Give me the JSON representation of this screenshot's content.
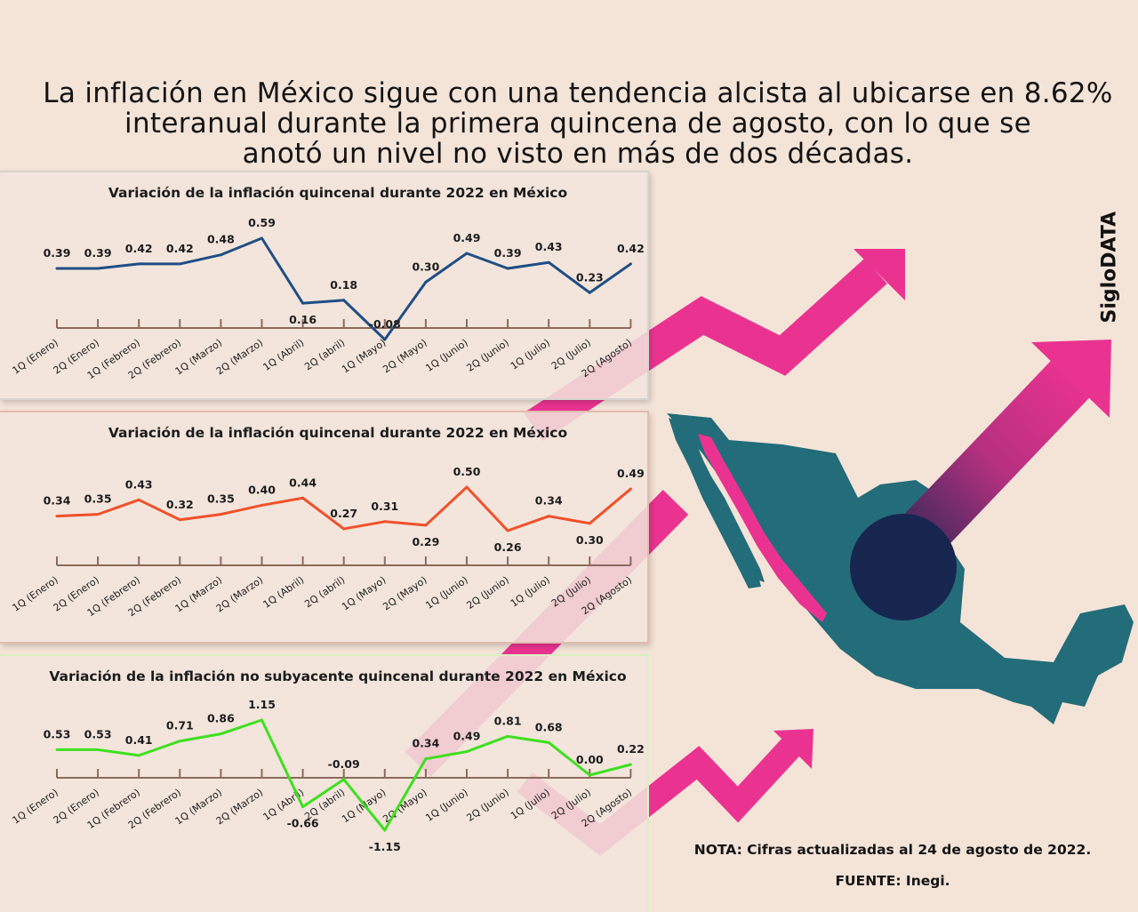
{
  "headline": [
    "La inflación en México sigue con una tendencia alcista al ubicarse en 8.62%",
    "interanual durante la primera quincena de agosto, con lo que se",
    "anotó un nivel no visto en más de dos décadas."
  ],
  "brand": "SigloDATA",
  "note": "NOTA: Cifras actualizadas al 24 de agosto de 2022.",
  "source": "FUENTE: Inegi.",
  "colors": {
    "background": "#f4e4d8",
    "series_1": "#1f4e85",
    "series_2": "#f0512a",
    "series_3": "#3ee01f",
    "axis": "#8b6a5c",
    "arrow": "#ea3390",
    "map": "#236c79",
    "map_highlight": "#ea3390",
    "circle": "#17264f"
  },
  "chart_data": [
    {
      "type": "line",
      "title": "Variación de la inflación quincenal durante 2022 en México",
      "categories": [
        "1Q (Enero)",
        "2Q (Enero)",
        "1Q (Febrero)",
        "2Q (Febrero)",
        "1Q (Marzo)",
        "2Q (Marzo)",
        "1Q (Abril)",
        "2Q (abril)",
        "1Q (Mayo)",
        "2Q (Mayo)",
        "1Q (Junio)",
        "2Q (Junio)",
        "1Q (Julio)",
        "2Q (Julio)",
        "2Q (Agosto)"
      ],
      "series": [
        {
          "values": [
            0.39,
            0.39,
            0.42,
            0.42,
            0.48,
            0.59,
            0.16,
            0.18,
            -0.08,
            0.3,
            0.49,
            0.39,
            0.43,
            0.23,
            0.42
          ]
        }
      ],
      "value_labels": [
        "0.39",
        "0.39",
        "0.42",
        "0.42",
        "0.48",
        "0.59",
        "0.16",
        "0.18",
        "-0.08",
        "0.30",
        "0.49",
        "0.39",
        "0.43",
        "0.23",
        "0.42"
      ],
      "label_position": [
        "above",
        "above",
        "above",
        "above",
        "above",
        "above",
        "below",
        "above",
        "above",
        "above",
        "above",
        "above",
        "above",
        "above",
        "above"
      ],
      "ylim": [
        -0.08,
        0.59
      ],
      "grid": false,
      "legend": "none"
    },
    {
      "type": "line",
      "title": "Variación de la inflación quincenal durante 2022 en México",
      "categories": [
        "1Q (Enero)",
        "2Q (Enero)",
        "1Q (Febrero)",
        "2Q (Febrero)",
        "1Q (Marzo)",
        "2Q (Marzo)",
        "1Q (Abril)",
        "2Q (abril)",
        "1Q (Mayo)",
        "2Q (Mayo)",
        "1Q (Junio)",
        "2Q (Junio)",
        "1Q (Julio)",
        "2Q (Julio)",
        "2Q (Agosto)"
      ],
      "series": [
        {
          "values": [
            0.34,
            0.35,
            0.43,
            0.32,
            0.35,
            0.4,
            0.44,
            0.27,
            0.31,
            0.29,
            0.5,
            0.26,
            0.34,
            0.3,
            0.49
          ]
        }
      ],
      "value_labels": [
        "0.34",
        "0.35",
        "0.43",
        "0.32",
        "0.35",
        "0.40",
        "0.44",
        "0.27",
        "0.31",
        "0.29",
        "0.50",
        "0.26",
        "0.34",
        "0.30",
        "0.49"
      ],
      "label_position": [
        "above",
        "above",
        "above",
        "above",
        "above",
        "above",
        "above",
        "above",
        "above",
        "below",
        "above",
        "below",
        "above",
        "below",
        "above"
      ],
      "ylim": [
        0.26,
        0.5
      ],
      "grid": false,
      "legend": "none"
    },
    {
      "type": "line",
      "title": "Variación de la inflación no subyacente quincenal durante 2022 en México",
      "categories": [
        "1Q (Enero)",
        "2Q (Enero)",
        "1Q (Febrero)",
        "2Q (Febrero)",
        "1Q (Marzo)",
        "2Q (Marzo)",
        "1Q (Abril)",
        "2Q (abril)",
        "1Q (Mayo)",
        "2Q (Mayo)",
        "1Q (Junio)",
        "2Q (Junio)",
        "1Q (Julio)",
        "2Q (Julio)",
        "2Q (Agosto)"
      ],
      "series": [
        {
          "values": [
            0.53,
            0.53,
            0.41,
            0.71,
            0.86,
            1.15,
            -0.66,
            -0.09,
            -1.15,
            0.34,
            0.49,
            0.81,
            0.68,
            0.0,
            0.22
          ]
        }
      ],
      "value_labels": [
        "0.53",
        "0.53",
        "0.41",
        "0.71",
        "0.86",
        "1.15",
        "-0.66",
        "-0.09",
        "-1.15",
        "0.34",
        "0.49",
        "0.81",
        "0.68",
        "0.00",
        "0.22"
      ],
      "label_position": [
        "above",
        "above",
        "above",
        "above",
        "above",
        "above",
        "below",
        "above",
        "below",
        "above",
        "above",
        "above",
        "above",
        "above",
        "above"
      ],
      "ylim": [
        -1.15,
        1.15
      ],
      "grid": false,
      "legend": "none"
    }
  ]
}
